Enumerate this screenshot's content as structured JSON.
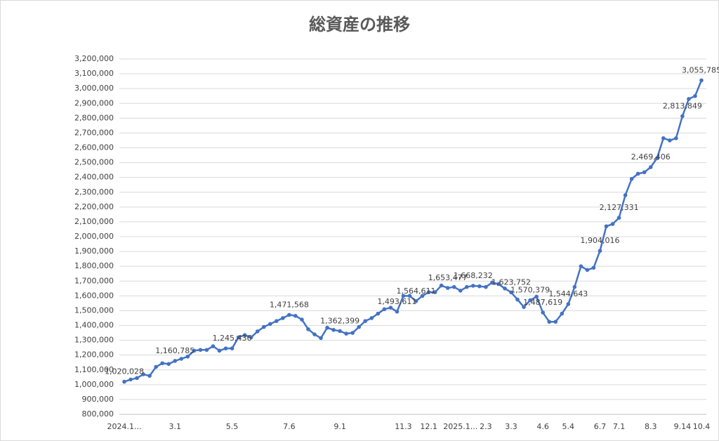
{
  "chart_data": {
    "type": "line",
    "title": "総資産の推移",
    "categories": [
      "2024.1...",
      null,
      null,
      null,
      null,
      null,
      null,
      null,
      "3.1",
      null,
      null,
      null,
      null,
      null,
      null,
      null,
      null,
      "5.5",
      null,
      null,
      null,
      null,
      null,
      null,
      null,
      null,
      "7.6",
      null,
      null,
      null,
      null,
      null,
      null,
      null,
      "9.1",
      null,
      null,
      null,
      null,
      null,
      null,
      null,
      null,
      null,
      "11.3",
      null,
      null,
      null,
      "12.1",
      null,
      null,
      null,
      null,
      "2025.1...",
      null,
      null,
      null,
      "2.3",
      null,
      null,
      null,
      "3.3",
      null,
      null,
      null,
      null,
      "4.6",
      null,
      null,
      null,
      "5.4",
      null,
      null,
      null,
      null,
      "6.7",
      null,
      null,
      "7.1",
      null,
      null,
      null,
      null,
      "8.3",
      null,
      null,
      null,
      null,
      "9.14",
      null,
      null,
      "10.4"
    ],
    "values": [
      1020028,
      1035000,
      1045000,
      1070000,
      1060000,
      1120000,
      1145000,
      1140000,
      1160785,
      1175000,
      1190000,
      1230000,
      1235000,
      1235000,
      1260000,
      1230000,
      1245000,
      1245436,
      1320000,
      1335000,
      1320000,
      1360000,
      1390000,
      1410000,
      1430000,
      1450000,
      1471568,
      1465000,
      1440000,
      1375000,
      1340000,
      1315000,
      1385000,
      1370000,
      1362399,
      1345000,
      1350000,
      1390000,
      1430000,
      1450000,
      1480000,
      1510000,
      1520000,
      1493611,
      1600000,
      1600000,
      1564611,
      1600000,
      1625000,
      1625000,
      1670000,
      1653477,
      1660000,
      1635000,
      1660000,
      1668232,
      1665000,
      1660000,
      1690000,
      1680000,
      1650000,
      1623752,
      1575000,
      1525000,
      1570379,
      1595000,
      1487619,
      1425000,
      1425000,
      1480000,
      1544643,
      1660000,
      1800000,
      1775000,
      1790000,
      1904016,
      2070000,
      2085000,
      2127331,
      2280000,
      2390000,
      2425000,
      2435000,
      2469406,
      2530000,
      2665000,
      2650000,
      2665000,
      2813849,
      2930000,
      2950000,
      3055785
    ],
    "value_labels": [
      "1,020,028",
      null,
      null,
      null,
      null,
      null,
      null,
      null,
      "1,160,785",
      null,
      null,
      null,
      null,
      null,
      null,
      null,
      null,
      "1,245,436",
      null,
      null,
      null,
      null,
      null,
      null,
      null,
      null,
      "1,471,568",
      null,
      null,
      null,
      null,
      null,
      null,
      null,
      "1,362,399",
      null,
      null,
      null,
      null,
      null,
      null,
      null,
      null,
      "1,493,611",
      null,
      null,
      "1,564,611",
      null,
      null,
      null,
      null,
      "1,653,477",
      null,
      null,
      null,
      "1,668,232",
      null,
      null,
      null,
      null,
      null,
      "1,623,752",
      null,
      null,
      "1,570,379",
      null,
      "1,487,619",
      null,
      null,
      null,
      "1,544,643",
      null,
      null,
      null,
      null,
      "1,904,016",
      null,
      null,
      "2,127,331",
      null,
      null,
      null,
      null,
      "2,469,406",
      null,
      null,
      null,
      null,
      "2,813,849",
      null,
      null,
      "3,055,785"
    ],
    "color": "#4472c4",
    "ylim": [
      800000,
      3200000
    ],
    "yticks": [
      {
        "value": 800000,
        "label": "800,000"
      },
      {
        "value": 900000,
        "label": "900,000"
      },
      {
        "value": 1000000,
        "label": "1,000,000"
      },
      {
        "value": 1100000,
        "label": "1,100,000"
      },
      {
        "value": 1200000,
        "label": "1,200,000"
      },
      {
        "value": 1300000,
        "label": "1,300,000"
      },
      {
        "value": 1400000,
        "label": "1,400,000"
      },
      {
        "value": 1500000,
        "label": "1,500,000"
      },
      {
        "value": 1600000,
        "label": "1,600,000"
      },
      {
        "value": 1700000,
        "label": "1,700,000"
      },
      {
        "value": 1800000,
        "label": "1,800,000"
      },
      {
        "value": 1900000,
        "label": "1,900,000"
      },
      {
        "value": 2000000,
        "label": "2,000,000"
      },
      {
        "value": 2100000,
        "label": "2,100,000"
      },
      {
        "value": 2200000,
        "label": "2,200,000"
      },
      {
        "value": 2300000,
        "label": "2,300,000"
      },
      {
        "value": 2400000,
        "label": "2,400,000"
      },
      {
        "value": 2500000,
        "label": "2,500,000"
      },
      {
        "value": 2600000,
        "label": "2,600,000"
      },
      {
        "value": 2700000,
        "label": "2,700,000"
      },
      {
        "value": 2800000,
        "label": "2,800,000"
      },
      {
        "value": 2900000,
        "label": "2,900,000"
      },
      {
        "value": 3000000,
        "label": "3,000,000"
      },
      {
        "value": 3100000,
        "label": "3,100,000"
      },
      {
        "value": 3200000,
        "label": "3,200,000"
      }
    ],
    "grid": true
  }
}
